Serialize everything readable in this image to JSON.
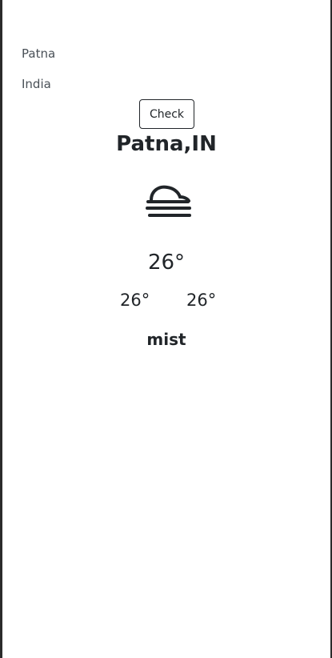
{
  "form": {
    "city_value": "Patna",
    "country_value": "India",
    "check_label": "Check"
  },
  "weather": {
    "location": "Patna,IN",
    "icon": "mist-icon",
    "temperature": "26°",
    "min_temp": "26°",
    "max_temp": "26°",
    "description": "mist"
  }
}
